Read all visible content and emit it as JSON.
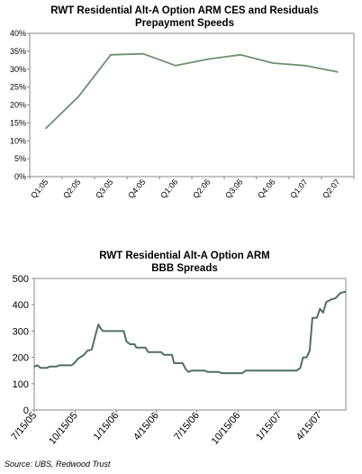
{
  "chart_data": [
    {
      "type": "line",
      "title": "RWT Residential Alt-A Option ARM CES and Residuals",
      "subtitle": "Prepayment Speeds",
      "categories": [
        "Q1:05",
        "Q2:05",
        "Q3:05",
        "Q4:05",
        "Q1:06",
        "Q2:06",
        "Q3:06",
        "Q4:06",
        "Q1:07",
        "Q2:07"
      ],
      "y_tick_labels": [
        "0%",
        "5%",
        "10%",
        "15%",
        "20%",
        "25%",
        "30%",
        "35%",
        "40%"
      ],
      "ylim": [
        0,
        40
      ],
      "y_unit": "%",
      "series": [
        {
          "values": [
            13.5,
            22.3,
            34.0,
            34.3,
            31.0,
            32.8,
            34.0,
            31.7,
            31.0,
            29.2
          ]
        }
      ],
      "line_color": "#6f9070",
      "grid": false
    },
    {
      "type": "line",
      "title": "RWT Residential Alt-A Option ARM",
      "subtitle": "BBB Spreads",
      "x_tick_labels": [
        "7/15/05",
        "10/15/05",
        "1/15/06",
        "4/15/06",
        "7/15/06",
        "10/15/06",
        "1/15/07",
        "4/15/07"
      ],
      "x_tick_dates": [
        "2005-07-15",
        "2005-10-15",
        "2006-01-15",
        "2006-04-15",
        "2006-07-15",
        "2006-10-15",
        "2007-01-15",
        "2007-04-15"
      ],
      "y_tick_labels": [
        "0",
        "100",
        "200",
        "300",
        "400",
        "500"
      ],
      "ylim": [
        0,
        500
      ],
      "series": [
        {
          "points": [
            [
              "2005-07-15",
              165
            ],
            [
              "2005-07-22",
              170
            ],
            [
              "2005-07-29",
              160
            ],
            [
              "2005-08-12",
              160
            ],
            [
              "2005-08-19",
              165
            ],
            [
              "2005-09-02",
              165
            ],
            [
              "2005-09-09",
              170
            ],
            [
              "2005-10-07",
              170
            ],
            [
              "2005-10-14",
              180
            ],
            [
              "2005-10-21",
              195
            ],
            [
              "2005-11-04",
              210
            ],
            [
              "2005-11-11",
              225
            ],
            [
              "2005-11-21",
              230
            ],
            [
              "2005-12-01",
              295
            ],
            [
              "2005-12-06",
              325
            ],
            [
              "2005-12-11",
              310
            ],
            [
              "2005-12-16",
              300
            ],
            [
              "2006-02-01",
              300
            ],
            [
              "2006-02-07",
              260
            ],
            [
              "2006-02-15",
              250
            ],
            [
              "2006-02-25",
              250
            ],
            [
              "2006-03-01",
              237
            ],
            [
              "2006-03-22",
              237
            ],
            [
              "2006-03-28",
              220
            ],
            [
              "2006-04-26",
              220
            ],
            [
              "2006-05-02",
              210
            ],
            [
              "2006-05-20",
              210
            ],
            [
              "2006-05-25",
              178
            ],
            [
              "2006-06-13",
              178
            ],
            [
              "2006-06-20",
              155
            ],
            [
              "2006-06-26",
              145
            ],
            [
              "2006-07-04",
              150
            ],
            [
              "2006-08-01",
              150
            ],
            [
              "2006-08-08",
              145
            ],
            [
              "2006-09-02",
              145
            ],
            [
              "2006-09-08",
              140
            ],
            [
              "2006-10-25",
              140
            ],
            [
              "2006-11-01",
              150
            ],
            [
              "2007-02-24",
              150
            ],
            [
              "2007-03-04",
              160
            ],
            [
              "2007-03-10",
              200
            ],
            [
              "2007-03-18",
              200
            ],
            [
              "2007-03-25",
              225
            ],
            [
              "2007-03-31",
              350
            ],
            [
              "2007-04-10",
              350
            ],
            [
              "2007-04-17",
              385
            ],
            [
              "2007-04-24",
              370
            ],
            [
              "2007-05-01",
              410
            ],
            [
              "2007-05-12",
              420
            ],
            [
              "2007-05-22",
              425
            ],
            [
              "2007-06-02",
              445
            ],
            [
              "2007-06-14",
              450
            ]
          ]
        }
      ],
      "line_color": "#507060",
      "grid": false
    }
  ],
  "source_note": "Source: UBS, Redwood Trust"
}
